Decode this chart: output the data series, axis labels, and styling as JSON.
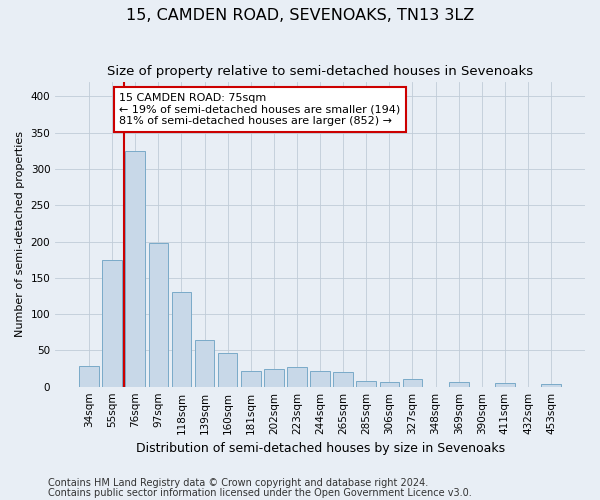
{
  "title": "15, CAMDEN ROAD, SEVENOAKS, TN13 3LZ",
  "subtitle": "Size of property relative to semi-detached houses in Sevenoaks",
  "xlabel": "Distribution of semi-detached houses by size in Sevenoaks",
  "ylabel": "Number of semi-detached properties",
  "categories": [
    "34sqm",
    "55sqm",
    "76sqm",
    "97sqm",
    "118sqm",
    "139sqm",
    "160sqm",
    "181sqm",
    "202sqm",
    "223sqm",
    "244sqm",
    "265sqm",
    "285sqm",
    "306sqm",
    "327sqm",
    "348sqm",
    "369sqm",
    "390sqm",
    "411sqm",
    "432sqm",
    "453sqm"
  ],
  "values": [
    28,
    175,
    325,
    198,
    130,
    65,
    47,
    22,
    25,
    27,
    22,
    20,
    8,
    6,
    10,
    0,
    7,
    0,
    5,
    0,
    4
  ],
  "bar_color": "#c8d8e8",
  "bar_edge_color": "#7aaac8",
  "grid_color": "#c0ccd8",
  "background_color": "#e8eef5",
  "vline_x": 1.5,
  "vline_color": "#cc0000",
  "annotation_text": "15 CAMDEN ROAD: 75sqm\n← 19% of semi-detached houses are smaller (194)\n81% of semi-detached houses are larger (852) →",
  "annotation_box_color": "#ffffff",
  "annotation_box_edge": "#cc0000",
  "ylim": [
    0,
    420
  ],
  "yticks": [
    0,
    50,
    100,
    150,
    200,
    250,
    300,
    350,
    400
  ],
  "footnote1": "Contains HM Land Registry data © Crown copyright and database right 2024.",
  "footnote2": "Contains public sector information licensed under the Open Government Licence v3.0.",
  "title_fontsize": 11.5,
  "subtitle_fontsize": 9.5,
  "xlabel_fontsize": 9,
  "ylabel_fontsize": 8,
  "tick_fontsize": 7.5,
  "annot_fontsize": 8,
  "footnote_fontsize": 7
}
